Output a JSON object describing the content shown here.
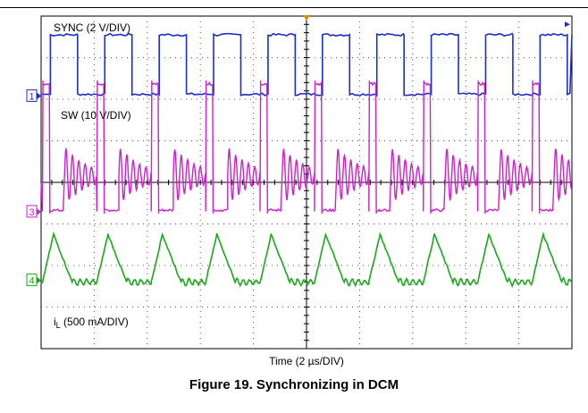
{
  "figure": {
    "caption": "Figure 19. Synchronizing in DCM"
  },
  "chart_data": {
    "type": "line",
    "title": "",
    "xlabel": "Time (2 µs/DIV)",
    "x_divisions": 10,
    "y_divisions": 8,
    "x_unit": "µs",
    "x_per_div": 2,
    "grid": true,
    "period_us": 2.05,
    "series": [
      {
        "name": "SYNC (2 V/DIV)",
        "label_main": "SYNC (2 V/DIV)",
        "label_sub": "",
        "label_tail": "",
        "channel_marker": "1",
        "color": "#1b2fc6",
        "low_div": 7.0,
        "high_div": 6.3,
        "volts_per_div": 2,
        "shape": "square"
      },
      {
        "name": "SW (10 V/DIV)",
        "label_main": "SW (10 V/DIV)",
        "label_sub": "",
        "label_tail": "",
        "channel_marker": "3",
        "color": "#cc22cc",
        "low_div": 2.95,
        "high_div": 6.1,
        "volts_per_div": 10,
        "shape": "switch-node-ringing"
      },
      {
        "name": "iL (500 mA/DIV)",
        "label_main": "i",
        "label_sub": "L",
        "label_tail": " (500 mA/DIV)",
        "channel_marker": "4",
        "color": "#1aa81a",
        "low_div": 1.6,
        "peak_div": 2.75,
        "amps_per_div": 0.5,
        "shape": "triangular-dcm"
      }
    ]
  }
}
